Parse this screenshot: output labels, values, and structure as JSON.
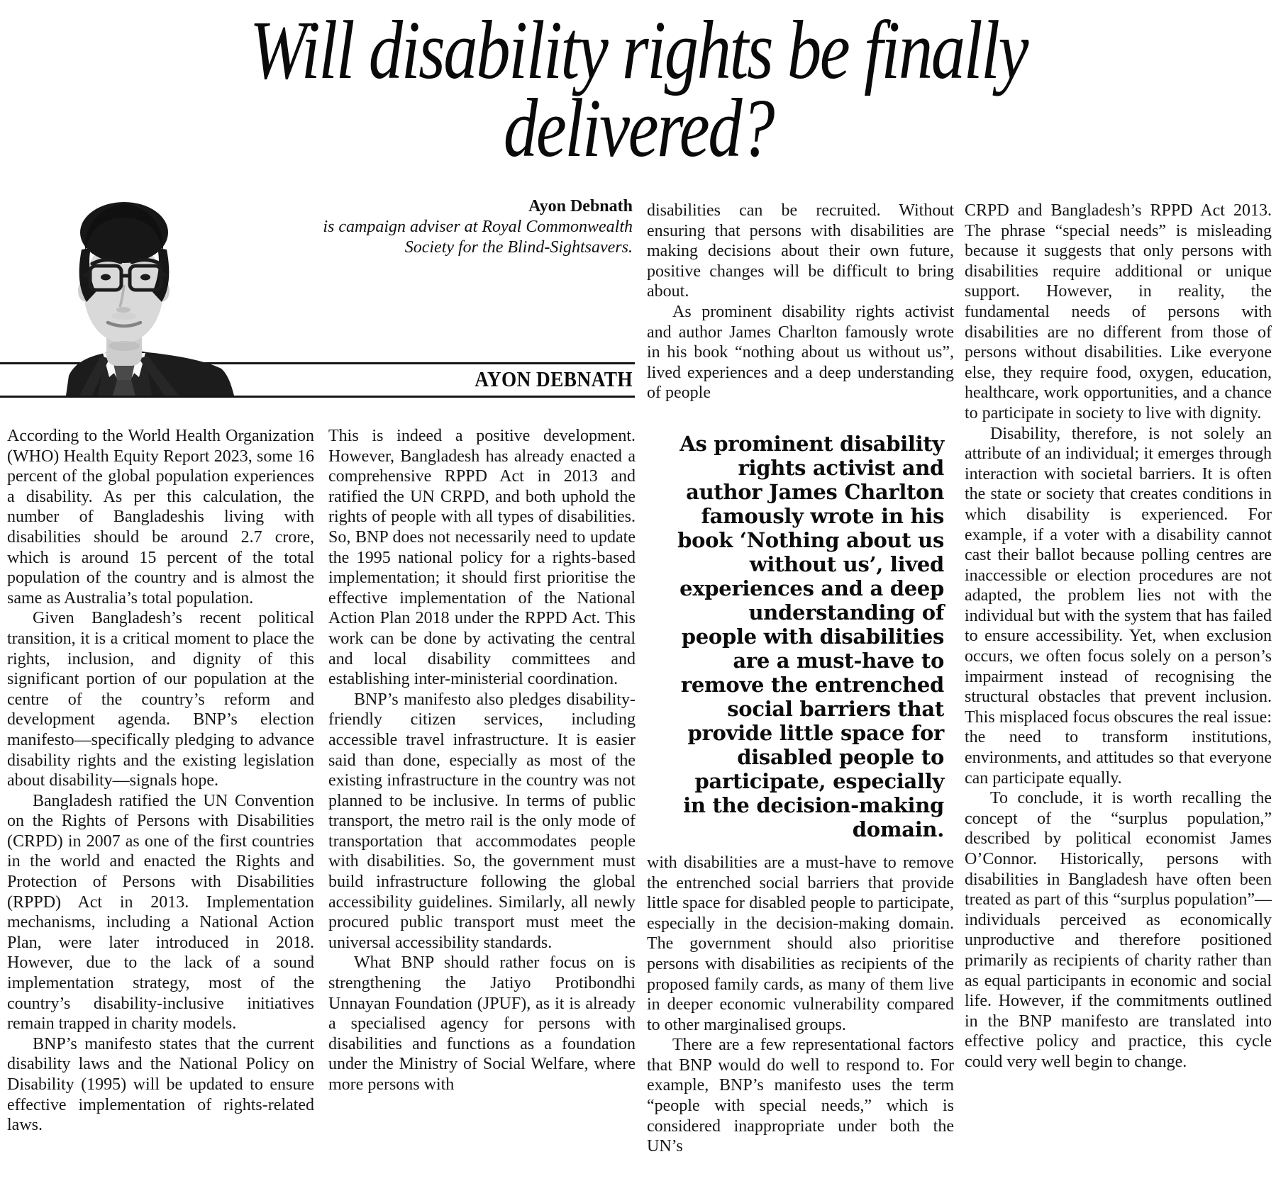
{
  "article": {
    "title_lines": [
      "Will disability rights be finally",
      "delivered?"
    ],
    "title": "Will disability rights be finally delivered?",
    "author": {
      "name": "Ayon Debnath",
      "bio": "is campaign adviser at Royal Commonwealth Society for the Blind-Sightsavers.",
      "label": "AYON DEBNATH",
      "photo_description": "black-and-white portrait of the author wearing glasses, a patterned tie, lanyard and dark suit"
    },
    "columns": [
      {
        "blocks": [
          {
            "type": "p",
            "indent": false,
            "text": "According to the World Health Organization (WHO) Health Equity Report 2023, some 16 percent of the global population experiences a disability. As per this calculation, the number of Bangladeshis living with disabilities should be around 2.7 crore, which is around 15 percent of the total population of the country and is almost the same as Australia’s total population."
          },
          {
            "type": "p",
            "indent": true,
            "text": "Given Bangladesh’s recent political transition, it is a critical moment to place the rights, inclusion, and dignity of this significant portion of our population at the centre of the country’s reform and development agenda. BNP’s election manifesto—specifically pledging to advance disability rights and the existing legislation about disability—signals hope."
          },
          {
            "type": "p",
            "indent": true,
            "text": "Bangladesh ratified the UN Convention on the Rights of Persons with Disabilities (CRPD) in 2007 as one of the first countries in the world and enacted the Rights and Protection of Persons with Disabilities (RPPD) Act in 2013. Implementation mechanisms, including a National Action Plan, were later introduced in 2018. However, due to the lack of a sound implementation strategy, most of the country’s disability-inclusive initiatives remain trapped in charity models."
          },
          {
            "type": "p",
            "indent": true,
            "text": "BNP’s manifesto states that the current disability laws and the National Policy on Disability (1995) will be updated to ensure effective implementation of rights-related laws."
          }
        ]
      },
      {
        "blocks": [
          {
            "type": "p",
            "indent": false,
            "text": "This is indeed a positive development. However, Bangladesh has already enacted a comprehensive RPPD Act in 2013 and ratified the UN CRPD, and both uphold the rights of people with all types of disabilities. So, BNP does not necessarily need to update the 1995 national policy for a rights-based implementation; it should first prioritise the effective implementation of the National Action Plan 2018 under the RPPD Act. This work can be done by activating the central and local disability committees and establishing inter-ministerial coordination."
          },
          {
            "type": "p",
            "indent": true,
            "text": "BNP’s manifesto also pledges disability-friendly citizen services, including accessible travel infrastructure. It is easier said than done, especially as most of the existing infrastructure in the country was not planned to be inclusive. In terms of public transport, the metro rail is the only mode of transportation that accommodates people with disabilities. So, the government must build infrastructure following the global accessibility guidelines. Similarly, all newly procured public transport must meet the universal accessibility standards."
          },
          {
            "type": "p",
            "indent": true,
            "text": "What BNP should rather focus on is strengthening the Jatiyo Protibondhi Unnayan Foundation (JPUF), as it is already a specialised agency for persons with disabilities and functions as a foundation under the Ministry of Social Welfare, where more persons with"
          }
        ]
      },
      {
        "blocks": [
          {
            "type": "p",
            "indent": false,
            "text": "disabilities can be recruited. Without ensuring that persons with disabilities are making decisions about their own future, positive changes will be difficult to bring about."
          },
          {
            "type": "p",
            "indent": true,
            "text": "As prominent disability rights activist and author James Charlton famously wrote in his book “nothing about us without us”, lived experiences and a deep understanding of people"
          },
          {
            "type": "quote",
            "text": "As prominent disability rights activist and author James Charlton famously wrote in his book ‘Nothing about us without us’, lived experiences and a deep understanding of people with disabilities are a must-have to remove the entrenched social barriers that provide little space for disabled people to participate, especially in the decision-making domain."
          },
          {
            "type": "p",
            "indent": false,
            "text": "with disabilities are a must-have to remove the entrenched social barriers that provide little space for disabled people to participate, especially in the decision-making domain. The government should also prioritise persons with disabilities as recipients of the proposed family cards, as many of them live in deeper economic vulnerability compared to other marginalised groups."
          },
          {
            "type": "p",
            "indent": true,
            "text": "There are a few representational factors that BNP would do well to respond to. For example, BNP’s manifesto uses the term “people with special needs,” which is considered inappropriate under both the UN’s"
          }
        ]
      },
      {
        "blocks": [
          {
            "type": "p",
            "indent": false,
            "text": "CRPD and Bangladesh’s RPPD Act 2013. The phrase “special needs” is misleading because it suggests that only persons with disabilities require additional or unique support. However, in reality, the fundamental needs of persons with disabilities are no different from those of persons without disabilities. Like everyone else, they require food, oxygen, education, healthcare, work opportunities, and a chance to participate in society to live with dignity."
          },
          {
            "type": "p",
            "indent": true,
            "text": "Disability, therefore, is not solely an attribute of an individual; it emerges through interaction with societal barriers. It is often the state or society that creates conditions in which disability is experienced. For example, if a voter with a disability cannot cast their ballot because polling centres are inaccessible or election procedures are not adapted, the problem lies not with the individual but with the system that has failed to ensure accessibility. Yet, when exclusion occurs, we often focus solely on a person’s impairment instead of recognising the structural obstacles that prevent inclusion. This misplaced focus obscures the real issue: the need to transform institutions, environments, and attitudes so that everyone can participate equally."
          },
          {
            "type": "p",
            "indent": true,
            "text": "To conclude, it is worth recalling the concept of the “surplus population,” described by political economist James O’Connor. Historically, persons with disabilities in Bangladesh have often been treated as part of this “surplus population”—individuals perceived as economically unproductive and therefore positioned primarily as recipients of charity rather than as equal participants in economic and social life. However, if the commitments outlined in the BNP manifesto are translated into effective policy and practice, this cycle could very well begin to change."
          }
        ]
      }
    ]
  }
}
